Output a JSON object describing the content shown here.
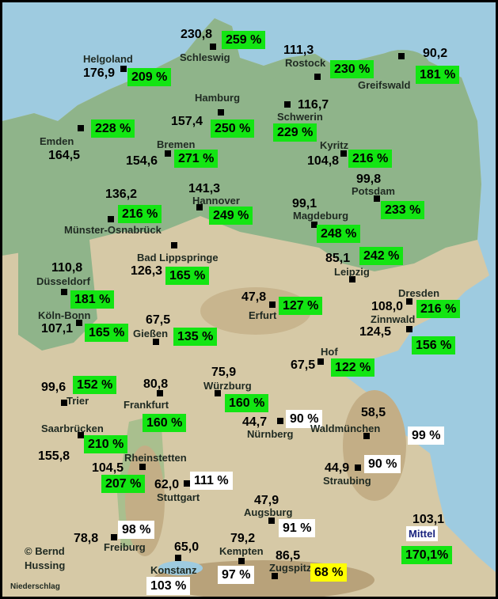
{
  "colors": {
    "above_normal": "#13e513",
    "normal": "#ffffff",
    "below_normal": "#ffff00",
    "sea": "#9ecbe0",
    "lowland": "#8fb48a",
    "upland": "#d6c9a6"
  },
  "caption": "Niederschlag",
  "credit": "© Bernd Hussing",
  "mean": {
    "label": "Mittel",
    "value": "103,1",
    "percent": "170,1%"
  },
  "stations": [
    {
      "name": "Schleswig",
      "value": "230,8",
      "percent": "259 %"
    },
    {
      "name": "Helgoland",
      "value": "176,9",
      "percent": "209 %"
    },
    {
      "name": "Rostock",
      "value": "111,3",
      "percent": "230 %"
    },
    {
      "name": "Greifswald",
      "value": "90,2",
      "percent": "181 %"
    },
    {
      "name": "Emden",
      "value": "164,5",
      "percent": "228 %"
    },
    {
      "name": "Hamburg",
      "value": "157,4",
      "percent": "250 %"
    },
    {
      "name": "Schwerin",
      "value": "116,7",
      "percent": "229 %"
    },
    {
      "name": "Bremen",
      "value": "154,6",
      "percent": "271 %"
    },
    {
      "name": "Kyritz",
      "value": "104,8",
      "percent": "216 %"
    },
    {
      "name": "Potsdam",
      "value": "99,8",
      "percent": "233 %"
    },
    {
      "name": "Münster-Osnabrück",
      "value": "136,2",
      "percent": "216 %"
    },
    {
      "name": "Hannover",
      "value": "141,3",
      "percent": "249 %"
    },
    {
      "name": "Magdeburg",
      "value": "99,1",
      "percent": "248 %"
    },
    {
      "name": "Bad Lippspringe",
      "value": "126,3",
      "percent": "165 %"
    },
    {
      "name": "Leipzig",
      "value": "85,1",
      "percent": "242 %"
    },
    {
      "name": "Düsseldorf",
      "value": "110,8",
      "percent": "181 %"
    },
    {
      "name": "Erfurt",
      "value": "47,8",
      "percent": "127 %"
    },
    {
      "name": "Dresden",
      "value": "108,0",
      "percent": "216 %"
    },
    {
      "name": "Köln-Bonn",
      "value": "107,1",
      "percent": "165 %"
    },
    {
      "name": "Gießen",
      "value": "67,5",
      "percent": "135 %"
    },
    {
      "name": "Zinnwald",
      "value": "124,5",
      "percent": "156 %"
    },
    {
      "name": "Hof",
      "value": "67,5",
      "percent": "122 %"
    },
    {
      "name": "Trier",
      "value": "99,6",
      "percent": "152 %"
    },
    {
      "name": "Würzburg",
      "value": "75,9",
      "percent": "160 %"
    },
    {
      "name": "Frankfurt",
      "value": "80,8",
      "percent": "160 %"
    },
    {
      "name": "Nürnberg",
      "value": "44,7",
      "percent": "90 %"
    },
    {
      "name": "Waldmünchen",
      "value": "58,5",
      "percent": "99 %"
    },
    {
      "name": "Saarbrücken",
      "value": "155,8",
      "percent": "210 %"
    },
    {
      "name": "Rheinstetten",
      "value": "104,5",
      "percent": "207 %"
    },
    {
      "name": "Straubing",
      "value": "44,9",
      "percent": "90 %"
    },
    {
      "name": "Stuttgart",
      "value": "62,0",
      "percent": "111 %"
    },
    {
      "name": "Augsburg",
      "value": "47,9",
      "percent": "91 %"
    },
    {
      "name": "Freiburg",
      "value": "78,8",
      "percent": "98 %"
    },
    {
      "name": "Kempten",
      "value": "79,2",
      "percent": "97 %"
    },
    {
      "name": "Zugspitze",
      "value": "86,5",
      "percent": "68 %"
    },
    {
      "name": "Konstanz",
      "value": "65,0",
      "percent": "103 %"
    }
  ]
}
